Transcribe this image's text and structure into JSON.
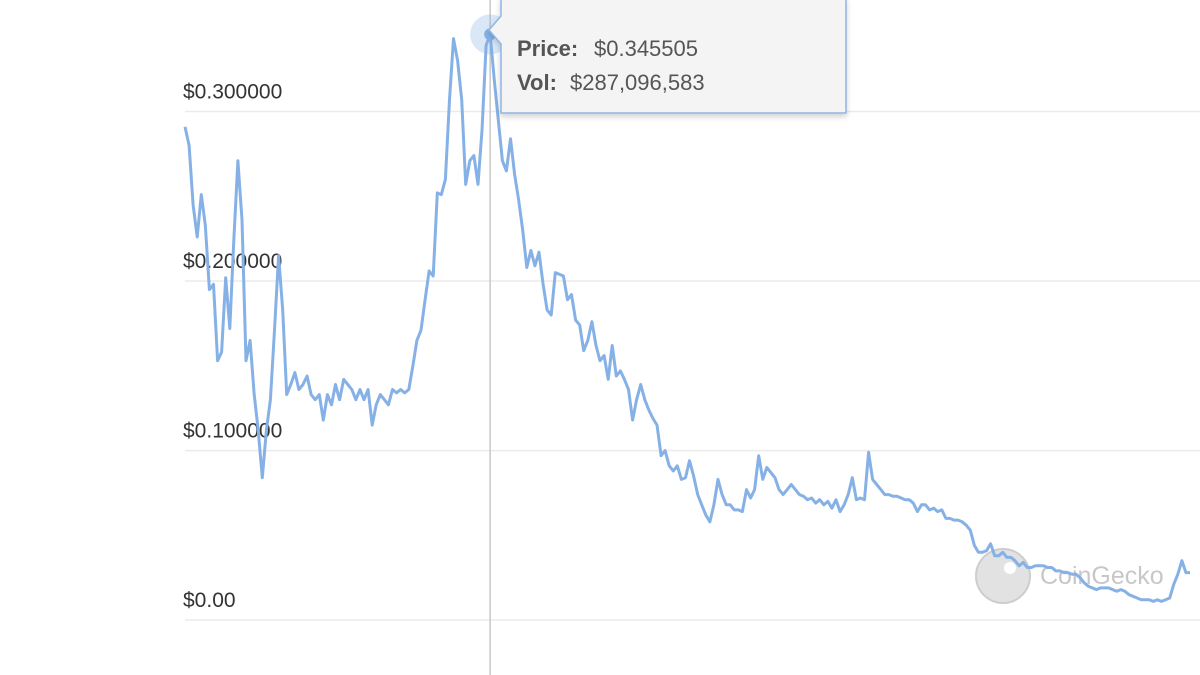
{
  "chart_data": {
    "type": "line",
    "series": [
      {
        "name": "Price",
        "color": "#86b1e6",
        "values": [
          0.291,
          0.28,
          0.245,
          0.226,
          0.251,
          0.233,
          0.195,
          0.198,
          0.153,
          0.158,
          0.202,
          0.172,
          0.224,
          0.271,
          0.236,
          0.153,
          0.165,
          0.133,
          0.112,
          0.084,
          0.112,
          0.13,
          0.171,
          0.215,
          0.183,
          0.133,
          0.139,
          0.146,
          0.136,
          0.139,
          0.144,
          0.133,
          0.13,
          0.133,
          0.118,
          0.133,
          0.127,
          0.139,
          0.13,
          0.142,
          0.139,
          0.136,
          0.13,
          0.136,
          0.13,
          0.136,
          0.115,
          0.127,
          0.133,
          0.13,
          0.127,
          0.136,
          0.134,
          0.136,
          0.134,
          0.136,
          0.15,
          0.165,
          0.171,
          0.189,
          0.206,
          0.203,
          0.252,
          0.251,
          0.26,
          0.307,
          0.343,
          0.33,
          0.307,
          0.257,
          0.271,
          0.274,
          0.257,
          0.289,
          0.339,
          0.345505,
          0.319,
          0.295,
          0.271,
          0.265,
          0.284,
          0.263,
          0.248,
          0.23,
          0.208,
          0.218,
          0.209,
          0.217,
          0.198,
          0.183,
          0.18,
          0.205,
          0.204,
          0.203,
          0.189,
          0.192,
          0.177,
          0.174,
          0.159,
          0.165,
          0.176,
          0.162,
          0.153,
          0.156,
          0.142,
          0.162,
          0.144,
          0.147,
          0.142,
          0.136,
          0.118,
          0.13,
          0.139,
          0.13,
          0.124,
          0.119,
          0.115,
          0.097,
          0.1,
          0.091,
          0.088,
          0.091,
          0.083,
          0.084,
          0.094,
          0.085,
          0.074,
          0.068,
          0.062,
          0.058,
          0.068,
          0.083,
          0.074,
          0.068,
          0.068,
          0.065,
          0.065,
          0.064,
          0.077,
          0.072,
          0.077,
          0.097,
          0.083,
          0.09,
          0.087,
          0.084,
          0.077,
          0.074,
          0.077,
          0.08,
          0.077,
          0.074,
          0.073,
          0.071,
          0.072,
          0.069,
          0.071,
          0.068,
          0.07,
          0.066,
          0.071,
          0.064,
          0.068,
          0.074,
          0.084,
          0.071,
          0.072,
          0.071,
          0.099,
          0.083,
          0.08,
          0.077,
          0.074,
          0.074,
          0.073,
          0.073,
          0.072,
          0.071,
          0.071,
          0.069,
          0.064,
          0.068,
          0.068,
          0.065,
          0.066,
          0.064,
          0.065,
          0.06,
          0.06,
          0.059,
          0.059,
          0.058,
          0.056,
          0.053,
          0.044,
          0.04,
          0.04,
          0.041,
          0.045,
          0.038,
          0.038,
          0.04,
          0.037,
          0.037,
          0.035,
          0.032,
          0.034,
          0.031,
          0.031,
          0.032,
          0.032,
          0.032,
          0.031,
          0.031,
          0.029,
          0.029,
          0.028,
          0.028,
          0.027,
          0.027,
          0.025,
          0.022,
          0.02,
          0.019,
          0.018,
          0.019,
          0.019,
          0.019,
          0.018,
          0.017,
          0.018,
          0.017,
          0.015,
          0.014,
          0.013,
          0.012,
          0.012,
          0.012,
          0.011,
          0.012,
          0.011,
          0.012,
          0.013,
          0.021,
          0.027,
          0.035,
          0.028,
          0.028
        ]
      }
    ],
    "ylim": [
      -0.0324,
      0.3658
    ],
    "yticks": [
      {
        "value": 0,
        "label": "$0.00"
      },
      {
        "value": 0.1,
        "label": "$0.100000"
      },
      {
        "value": 0.2,
        "label": "$0.200000"
      },
      {
        "value": 0.3,
        "label": "$0.300000"
      }
    ],
    "grid": true,
    "tooltip": {
      "price_label": "Price:",
      "price": "$0.345505",
      "vol_label": "Vol:",
      "vol": "$287,096,583"
    },
    "watermark": "CoinGecko"
  }
}
